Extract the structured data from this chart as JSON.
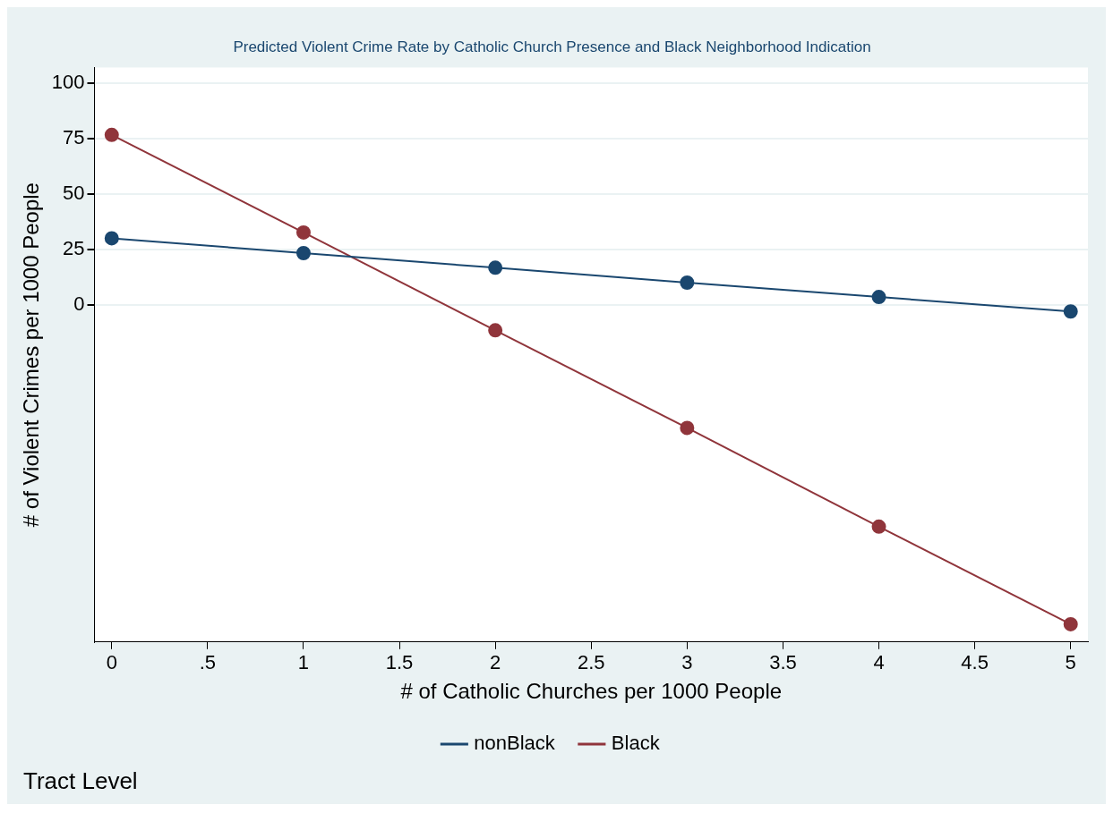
{
  "chart_data": {
    "type": "line",
    "title": "Predicted Violent Crime Rate by Catholic Church Presence and Black Neighborhood Indication",
    "xlabel": "# of Catholic Churches per 1000 People",
    "ylabel": "# of Violent Crimes per 1000 People",
    "annotations": [
      "Tract Level"
    ],
    "x": [
      0,
      1,
      2,
      3,
      4,
      5
    ],
    "series": [
      {
        "name": "nonBlack",
        "color": "#1a476f",
        "values": [
          30,
          23.3,
          16.7,
          10,
          3.5,
          -3
        ]
      },
      {
        "name": "Black",
        "color": "#90353b",
        "values": [
          76.6,
          32.6,
          -11.5,
          -55.5,
          -100,
          -144
        ]
      }
    ],
    "xlim": [
      -0.09,
      5.09
    ],
    "xticks": [
      0,
      {
        "value": 0.5,
        "label": ".5"
      },
      1,
      1.5,
      2,
      2.5,
      3,
      3.5,
      4,
      4.5,
      5
    ],
    "ylim": [
      -152,
      107
    ],
    "yticks": [
      0,
      25,
      50,
      75,
      100
    ],
    "grid": "y",
    "legend": "bottom",
    "marker": "circle",
    "line_style": "solid"
  }
}
